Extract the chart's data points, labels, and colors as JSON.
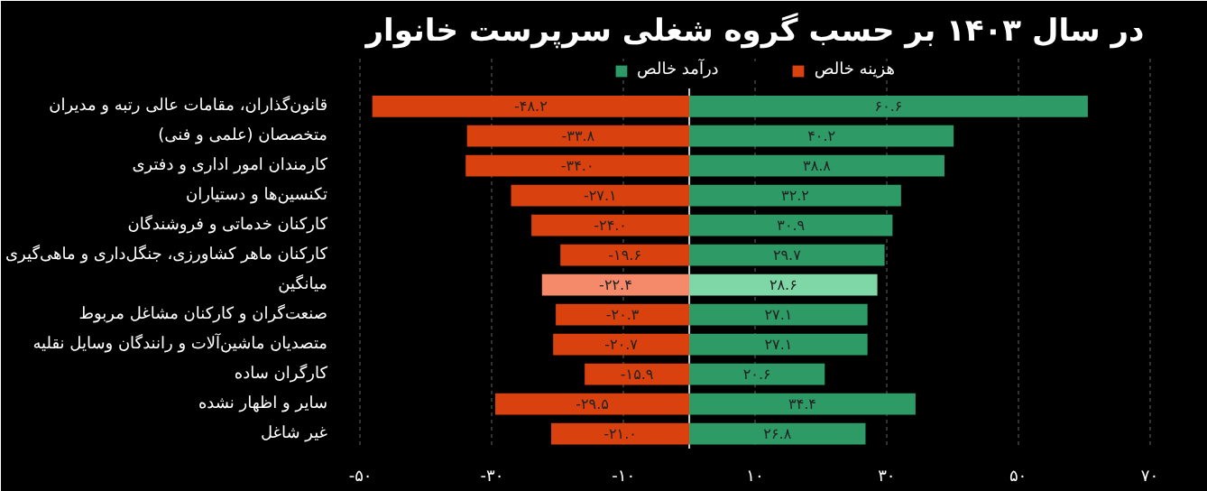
{
  "chart_data": {
    "type": "bar",
    "orientation": "horizontal",
    "title": "در سال ۱۴۰۳ بر حسب گروه شغلی سرپرست خانوار",
    "categories": [
      "قانون‌گذاران، مقامات عالی رتبه و مدیران",
      "متخصصان (علمی و فنی)",
      "کارمندان امور اداری و دفتری",
      "تکنسین‌ها و دستیاران",
      "کارکنان خدماتی و فروشندگان",
      "کارکنان ماهر کشاورزی، جنگل‌داری و ماهی‌گیری",
      "میانگین",
      "صنعت‌گران و کارکنان مشاغل مربوط",
      "متصدیان ماشین‌آلات و رانندگان وسایل نقلیه",
      "کارگران ساده",
      "سایر و اظهار نشده",
      "غیر شاغل"
    ],
    "series": [
      {
        "name": "درآمد خالص",
        "color": "#2e9a66",
        "colors": [
          "#2e9a66",
          "#2e9a66",
          "#2e9a66",
          "#2e9a66",
          "#2e9a66",
          "#2e9a66",
          "#7fd6a6",
          "#2e9a66",
          "#2e9a66",
          "#2e9a66",
          "#2e9a66",
          "#2e9a66"
        ],
        "values": [
          60.6,
          40.2,
          38.8,
          32.2,
          30.9,
          29.7,
          28.6,
          27.1,
          27.1,
          20.6,
          34.4,
          26.8
        ],
        "value_labels": [
          "۶۰.۶",
          "۴۰.۲",
          "۳۸.۸",
          "۳۲.۲",
          "۳۰.۹",
          "۲۹.۷",
          "۲۸.۶",
          "۲۷.۱",
          "۲۷.۱",
          "۲۰.۶",
          "۳۴.۴",
          "۲۶.۸"
        ]
      },
      {
        "name": "هزینه خالص",
        "color": "#d9410f",
        "colors": [
          "#d9410f",
          "#d9410f",
          "#d9410f",
          "#d9410f",
          "#d9410f",
          "#d9410f",
          "#f58a6a",
          "#d9410f",
          "#d9410f",
          "#d9410f",
          "#d9410f",
          "#d9410f"
        ],
        "values": [
          -48.2,
          -33.8,
          -34.0,
          -27.1,
          -24.0,
          -19.6,
          -22.4,
          -20.3,
          -20.7,
          -15.9,
          -29.5,
          -21.0
        ],
        "value_labels": [
          "-۴۸.۲",
          "-۳۳.۸",
          "-۳۴.۰",
          "-۲۷.۱",
          "-۲۴.۰",
          "-۱۹.۶",
          "-۲۲.۴",
          "-۲۰.۳",
          "-۲۰.۷",
          "-۱۵.۹",
          "-۲۹.۵",
          "-۲۱.۰"
        ]
      }
    ],
    "xlim": [
      -52,
      72
    ],
    "xticks": [
      {
        "value": -50,
        "label": "-۵۰"
      },
      {
        "value": -30,
        "label": "-۳۰"
      },
      {
        "value": -10,
        "label": "-۱۰"
      },
      {
        "value": 10,
        "label": "۱۰"
      },
      {
        "value": 30,
        "label": "۳۰"
      },
      {
        "value": 50,
        "label": "۵۰"
      },
      {
        "value": 70,
        "label": "۷۰"
      }
    ],
    "grid": "x",
    "legend": "top",
    "stacked": true
  }
}
